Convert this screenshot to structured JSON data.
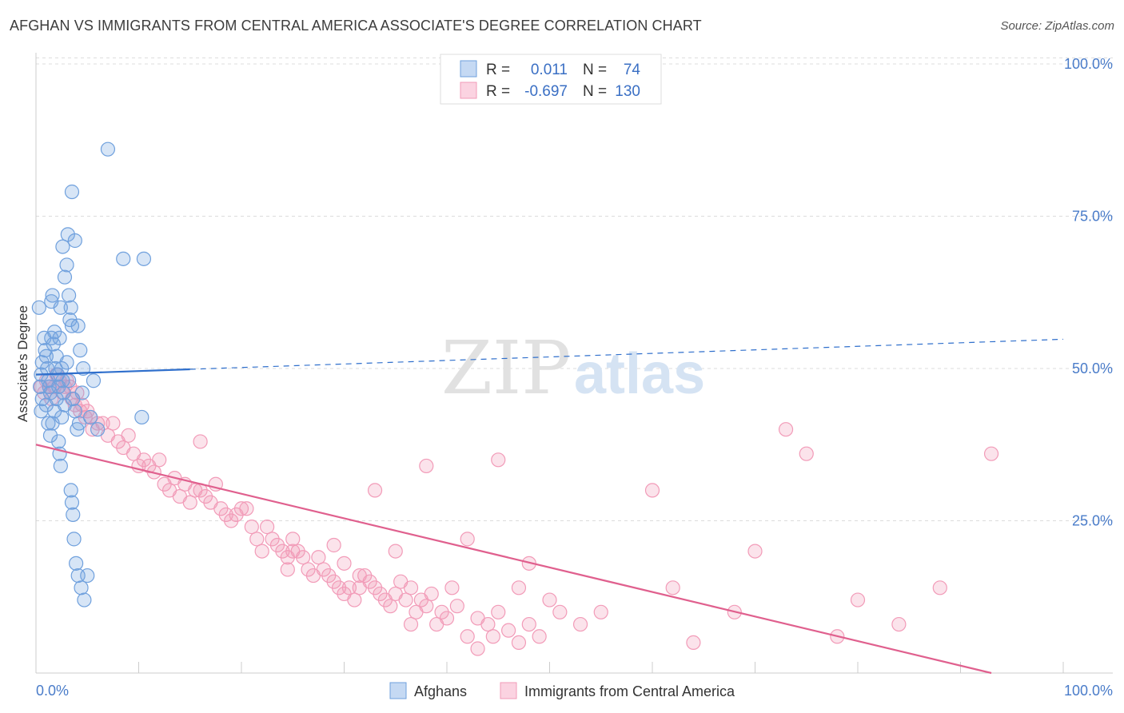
{
  "title": "AFGHAN VS IMMIGRANTS FROM CENTRAL AMERICA ASSOCIATE'S DEGREE CORRELATION CHART",
  "source": "Source: ZipAtlas.com",
  "watermark": {
    "zip": "ZIP",
    "atlas": "atlas"
  },
  "legend": {
    "rows": [
      {
        "r_label": "R =",
        "r_value": "0.011",
        "n_label": "N =",
        "n_value": "74"
      },
      {
        "r_label": "R =",
        "r_value": "-0.697",
        "n_label": "N =",
        "n_value": "130"
      }
    ]
  },
  "chart_data": {
    "type": "scatter",
    "title": "AFGHAN VS IMMIGRANTS FROM CENTRAL AMERICA ASSOCIATE'S DEGREE CORRELATION CHART",
    "xlabel": "",
    "ylabel": "Associate's Degree",
    "xlim": [
      0,
      100
    ],
    "ylim": [
      0,
      105
    ],
    "x_tick_labels": [
      "0.0%",
      "100.0%"
    ],
    "y_ticks": [
      25,
      50,
      75,
      100
    ],
    "y_tick_labels": [
      "25.0%",
      "50.0%",
      "75.0%",
      "100.0%"
    ],
    "grid": true,
    "series": [
      {
        "name": "Afghans",
        "color": "#6fa0dd",
        "line_color": "#2f6fcc",
        "trend": {
          "x0": 0,
          "y0": 49.0,
          "x1": 100,
          "y1": 54.8,
          "solid_until": 15
        },
        "points": [
          [
            0.3,
            60
          ],
          [
            0.6,
            51
          ],
          [
            0.5,
            49
          ],
          [
            0.4,
            47
          ],
          [
            0.6,
            45
          ],
          [
            0.5,
            43
          ],
          [
            0.8,
            55
          ],
          [
            0.9,
            53
          ],
          [
            1.0,
            52
          ],
          [
            1.1,
            50
          ],
          [
            1.2,
            48
          ],
          [
            1.3,
            47
          ],
          [
            1.4,
            46
          ],
          [
            1.0,
            44
          ],
          [
            1.2,
            41
          ],
          [
            1.5,
            61
          ],
          [
            1.6,
            62
          ],
          [
            1.5,
            55
          ],
          [
            1.8,
            56
          ],
          [
            1.7,
            54
          ],
          [
            2.0,
            52
          ],
          [
            1.9,
            50
          ],
          [
            2.1,
            49
          ],
          [
            2.2,
            47
          ],
          [
            2.0,
            45
          ],
          [
            1.8,
            43
          ],
          [
            1.6,
            41
          ],
          [
            1.4,
            39
          ],
          [
            2.4,
            60
          ],
          [
            2.3,
            55
          ],
          [
            2.5,
            50
          ],
          [
            2.6,
            48
          ],
          [
            2.7,
            46
          ],
          [
            2.8,
            44
          ],
          [
            2.5,
            42
          ],
          [
            2.2,
            38
          ],
          [
            2.3,
            36
          ],
          [
            2.4,
            34
          ],
          [
            2.8,
            65
          ],
          [
            3.0,
            67
          ],
          [
            3.2,
            62
          ],
          [
            3.4,
            60
          ],
          [
            3.3,
            58
          ],
          [
            3.5,
            57
          ],
          [
            3.0,
            51
          ],
          [
            3.2,
            48
          ],
          [
            3.6,
            45
          ],
          [
            3.8,
            43
          ],
          [
            4.0,
            40
          ],
          [
            4.2,
            41
          ],
          [
            2.6,
            70
          ],
          [
            3.1,
            72
          ],
          [
            3.5,
            79
          ],
          [
            3.8,
            71
          ],
          [
            4.1,
            57
          ],
          [
            4.3,
            53
          ],
          [
            4.6,
            50
          ],
          [
            4.5,
            46
          ],
          [
            3.4,
            30
          ],
          [
            3.5,
            28
          ],
          [
            3.6,
            26
          ],
          [
            3.7,
            22
          ],
          [
            3.9,
            18
          ],
          [
            4.1,
            16
          ],
          [
            4.4,
            14
          ],
          [
            4.7,
            12
          ],
          [
            5.0,
            16
          ],
          [
            5.3,
            42
          ],
          [
            5.6,
            48
          ],
          [
            6.0,
            40
          ],
          [
            7.0,
            86
          ],
          [
            8.5,
            68
          ],
          [
            10.5,
            68
          ],
          [
            10.3,
            42
          ]
        ]
      },
      {
        "name": "Immigrants from Central America",
        "color": "#f29bb8",
        "line_color": "#e0608e",
        "trend": {
          "x0": 0,
          "y0": 37.5,
          "x1": 93,
          "y1": 0
        },
        "points": [
          [
            0.5,
            47
          ],
          [
            0.8,
            46
          ],
          [
            1.0,
            48
          ],
          [
            1.3,
            47
          ],
          [
            1.5,
            45
          ],
          [
            1.8,
            47
          ],
          [
            2.0,
            49
          ],
          [
            2.3,
            48
          ],
          [
            2.6,
            46
          ],
          [
            2.8,
            47
          ],
          [
            3.0,
            48
          ],
          [
            3.3,
            47
          ],
          [
            3.5,
            45
          ],
          [
            3.8,
            44
          ],
          [
            4.0,
            46
          ],
          [
            4.3,
            43
          ],
          [
            4.5,
            44
          ],
          [
            4.8,
            42
          ],
          [
            5.0,
            43
          ],
          [
            5.3,
            42
          ],
          [
            5.5,
            40
          ],
          [
            6.0,
            41
          ],
          [
            6.5,
            41
          ],
          [
            7.0,
            39
          ],
          [
            7.5,
            41
          ],
          [
            8.0,
            38
          ],
          [
            8.5,
            37
          ],
          [
            9.0,
            39
          ],
          [
            9.5,
            36
          ],
          [
            10.0,
            34
          ],
          [
            10.5,
            35
          ],
          [
            11.0,
            34
          ],
          [
            11.5,
            33
          ],
          [
            12.0,
            35
          ],
          [
            12.5,
            31
          ],
          [
            13.0,
            30
          ],
          [
            13.5,
            32
          ],
          [
            14.0,
            29
          ],
          [
            14.5,
            31
          ],
          [
            15.0,
            28
          ],
          [
            15.5,
            30
          ],
          [
            16.0,
            30
          ],
          [
            16.5,
            29
          ],
          [
            17.0,
            28
          ],
          [
            17.5,
            31
          ],
          [
            18.0,
            27
          ],
          [
            18.5,
            26
          ],
          [
            19.0,
            25
          ],
          [
            19.5,
            26
          ],
          [
            20.0,
            27
          ],
          [
            20.5,
            27
          ],
          [
            21.0,
            24
          ],
          [
            21.5,
            22
          ],
          [
            22.0,
            20
          ],
          [
            22.5,
            24
          ],
          [
            23.0,
            22
          ],
          [
            23.5,
            21
          ],
          [
            24.0,
            20
          ],
          [
            24.5,
            19
          ],
          [
            25.0,
            22
          ],
          [
            25.5,
            20
          ],
          [
            26.0,
            19
          ],
          [
            26.5,
            17
          ],
          [
            27.0,
            16
          ],
          [
            27.5,
            19
          ],
          [
            28.0,
            17
          ],
          [
            28.5,
            16
          ],
          [
            29.0,
            15
          ],
          [
            29.5,
            14
          ],
          [
            30.0,
            13
          ],
          [
            30.5,
            14
          ],
          [
            31.0,
            12
          ],
          [
            31.5,
            14
          ],
          [
            32.0,
            16
          ],
          [
            32.5,
            15
          ],
          [
            33.0,
            14
          ],
          [
            33.5,
            13
          ],
          [
            34.0,
            12
          ],
          [
            34.5,
            11
          ],
          [
            35.0,
            13
          ],
          [
            35.5,
            15
          ],
          [
            36.0,
            12
          ],
          [
            36.5,
            14
          ],
          [
            37.0,
            10
          ],
          [
            37.5,
            12
          ],
          [
            38.0,
            11
          ],
          [
            38.5,
            13
          ],
          [
            39.0,
            8
          ],
          [
            39.5,
            10
          ],
          [
            40.0,
            9
          ],
          [
            41.0,
            11
          ],
          [
            42.0,
            6
          ],
          [
            43.0,
            9
          ],
          [
            44.0,
            8
          ],
          [
            45.0,
            10
          ],
          [
            46.0,
            7
          ],
          [
            47.0,
            5
          ],
          [
            48.0,
            8
          ],
          [
            49.0,
            6
          ],
          [
            50.0,
            12
          ],
          [
            51.0,
            10
          ],
          [
            16.0,
            38
          ],
          [
            25.0,
            20
          ],
          [
            30.0,
            18
          ],
          [
            33.0,
            30
          ],
          [
            35.0,
            20
          ],
          [
            38.0,
            34
          ],
          [
            42.0,
            22
          ],
          [
            45.0,
            35
          ],
          [
            48.0,
            18
          ],
          [
            53.0,
            8
          ],
          [
            55.0,
            10
          ],
          [
            60.0,
            30
          ],
          [
            62.0,
            14
          ],
          [
            64.0,
            5
          ],
          [
            68.0,
            10
          ],
          [
            70.0,
            20
          ],
          [
            73.0,
            40
          ],
          [
            75.0,
            36
          ],
          [
            78.0,
            6
          ],
          [
            80.0,
            12
          ],
          [
            84.0,
            8
          ],
          [
            88.0,
            14
          ],
          [
            93.0,
            36
          ],
          [
            24.5,
            17
          ],
          [
            29.0,
            21
          ],
          [
            31.5,
            16
          ],
          [
            36.5,
            8
          ],
          [
            40.5,
            14
          ],
          [
            44.5,
            6
          ],
          [
            43.0,
            4
          ],
          [
            47.0,
            14
          ]
        ]
      }
    ]
  },
  "bottom_legend": [
    {
      "label": "Afghans"
    },
    {
      "label": "Immigrants from Central America"
    }
  ]
}
